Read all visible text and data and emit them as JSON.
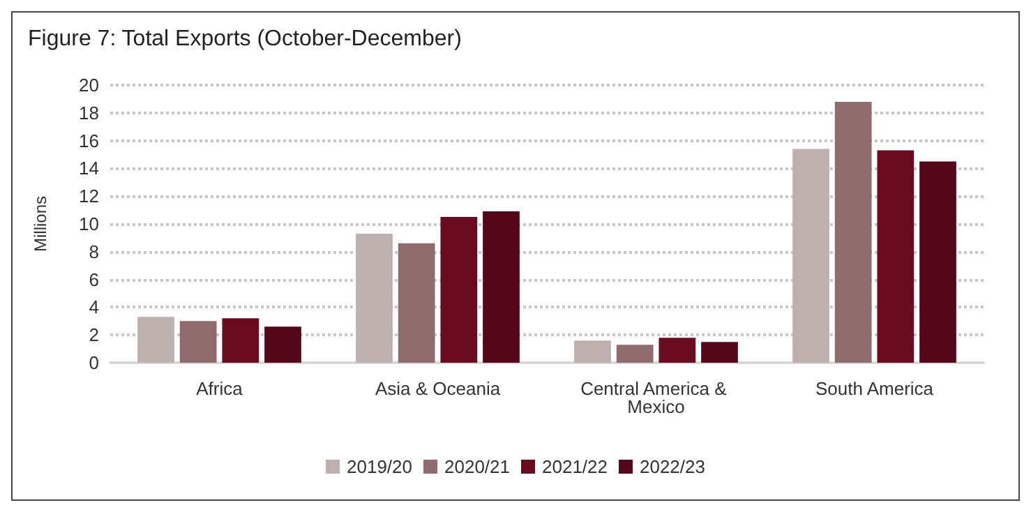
{
  "chart_data": {
    "type": "bar",
    "title": "Figure 7: Total Exports (October-December)",
    "ylabel": "Millions",
    "categories": [
      "Africa",
      "Asia & Oceania",
      "Central America & Mexico",
      "South America"
    ],
    "series": [
      {
        "name": "2019/20",
        "color": "#bfb0b0",
        "values": [
          3.3,
          9.3,
          1.6,
          15.4
        ]
      },
      {
        "name": "2020/21",
        "color": "#8f6b6e",
        "values": [
          3.0,
          8.6,
          1.3,
          18.8
        ]
      },
      {
        "name": "2021/22",
        "color": "#6b0b20",
        "values": [
          3.2,
          10.5,
          1.8,
          15.3
        ]
      },
      {
        "name": "2022/23",
        "color": "#55081a",
        "values": [
          2.6,
          10.9,
          1.5,
          14.5
        ]
      }
    ],
    "ylim": [
      0,
      20
    ],
    "yticks": [
      0,
      2,
      4,
      6,
      8,
      10,
      12,
      14,
      16,
      18,
      20
    ],
    "grid": "y",
    "legend": "bottom"
  }
}
